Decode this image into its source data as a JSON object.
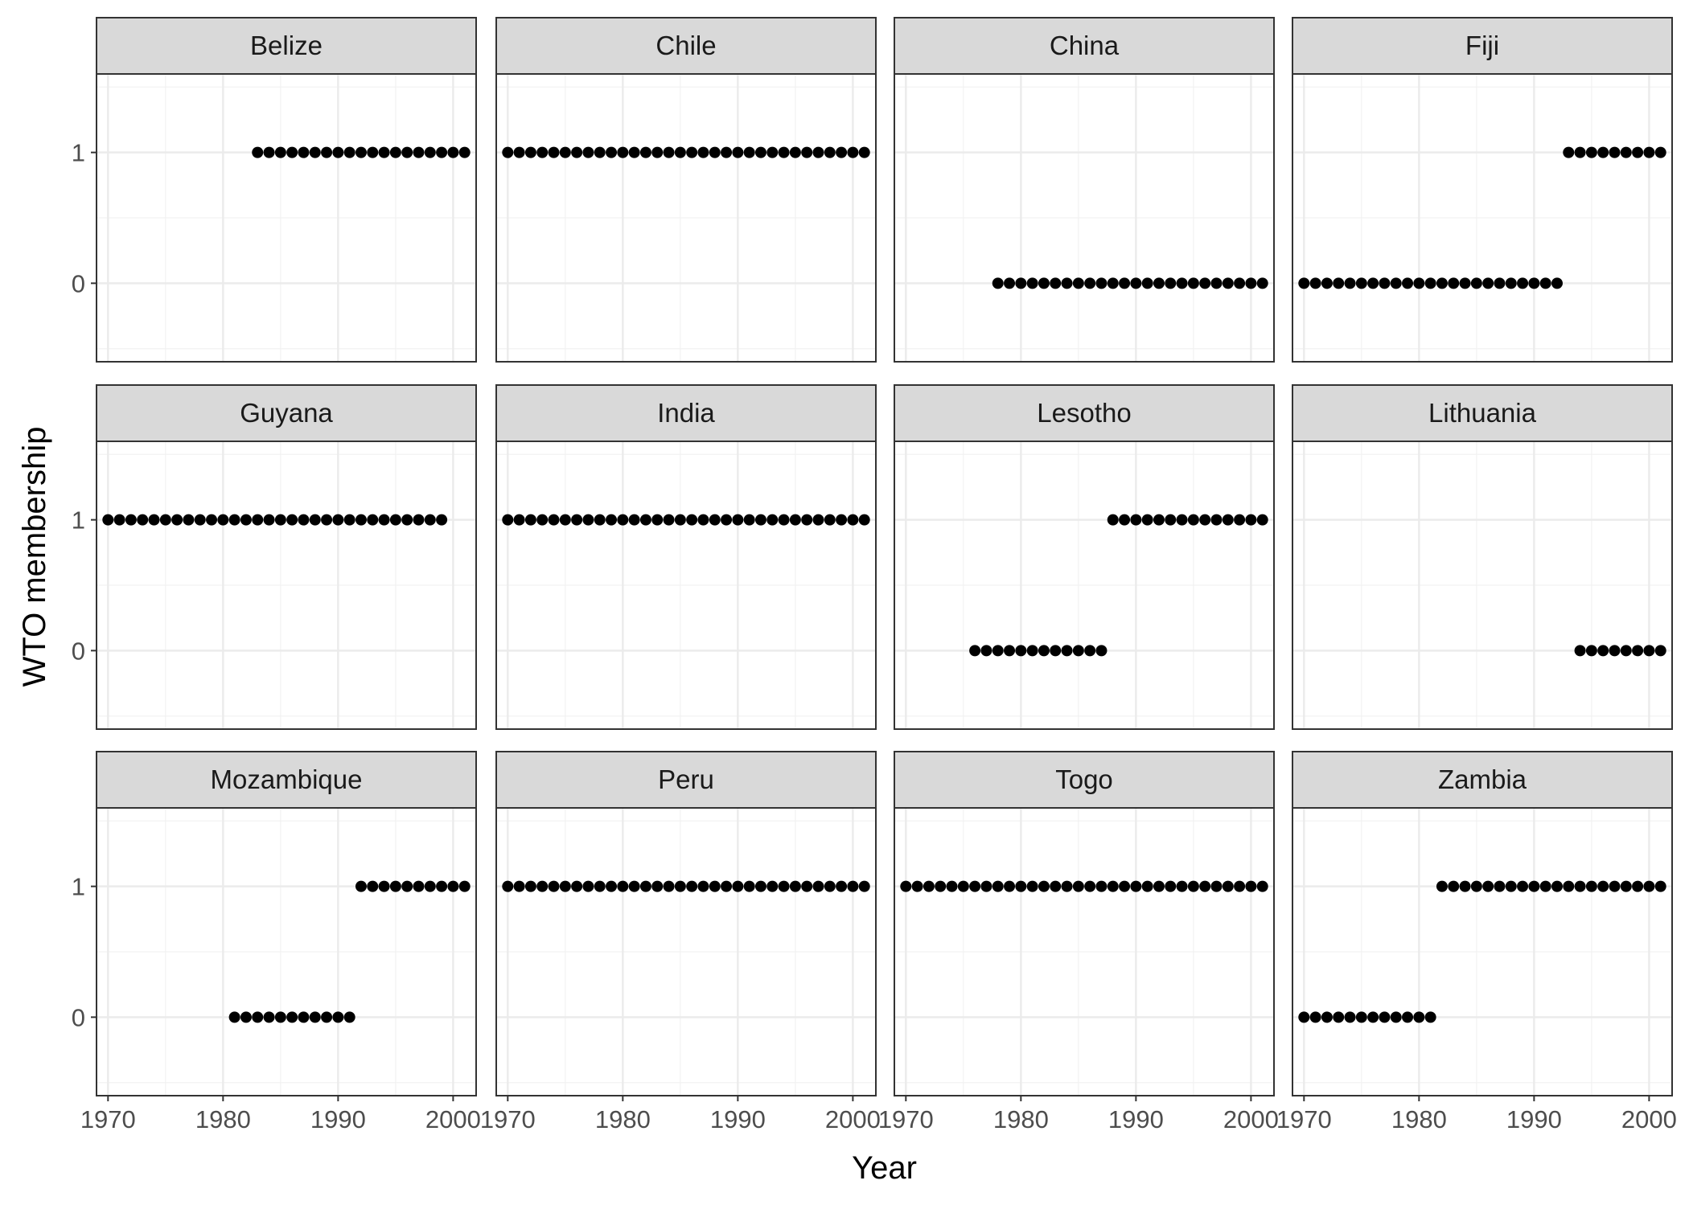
{
  "chart_data": {
    "type": "scatter",
    "layout": "facet-wrap",
    "ncol": 4,
    "xlabel": "Year",
    "ylabel": "WTO membership",
    "xlim": [
      1969,
      2002
    ],
    "ylim": [
      -0.6,
      1.6
    ],
    "x_ticks": [
      1970,
      1980,
      1990,
      2000
    ],
    "x_tick_labels": [
      "1970",
      "1980",
      "1990",
      "2000"
    ],
    "y_ticks": [
      0,
      1
    ],
    "y_tick_labels": [
      "0",
      "1"
    ],
    "grid": true,
    "point_color": "#000000",
    "strip_fill": "#d9d9d9",
    "panels": [
      {
        "name": "Belize",
        "segments": [
          {
            "x_start": 1983,
            "x_end": 2001,
            "y": 1
          }
        ]
      },
      {
        "name": "Chile",
        "segments": [
          {
            "x_start": 1970,
            "x_end": 2001,
            "y": 1
          }
        ]
      },
      {
        "name": "China",
        "segments": [
          {
            "x_start": 1978,
            "x_end": 2001,
            "y": 0
          }
        ]
      },
      {
        "name": "Fiji",
        "segments": [
          {
            "x_start": 1970,
            "x_end": 1992,
            "y": 0
          },
          {
            "x_start": 1993,
            "x_end": 2001,
            "y": 1
          }
        ]
      },
      {
        "name": "Guyana",
        "segments": [
          {
            "x_start": 1970,
            "x_end": 1999,
            "y": 1
          }
        ]
      },
      {
        "name": "India",
        "segments": [
          {
            "x_start": 1970,
            "x_end": 2001,
            "y": 1
          }
        ]
      },
      {
        "name": "Lesotho",
        "segments": [
          {
            "x_start": 1976,
            "x_end": 1987,
            "y": 0
          },
          {
            "x_start": 1988,
            "x_end": 2001,
            "y": 1
          }
        ]
      },
      {
        "name": "Lithuania",
        "segments": [
          {
            "x_start": 1994,
            "x_end": 2001,
            "y": 0
          }
        ]
      },
      {
        "name": "Mozambique",
        "segments": [
          {
            "x_start": 1981,
            "x_end": 1991,
            "y": 0
          },
          {
            "x_start": 1992,
            "x_end": 2001,
            "y": 1
          }
        ]
      },
      {
        "name": "Peru",
        "segments": [
          {
            "x_start": 1970,
            "x_end": 2001,
            "y": 1
          }
        ]
      },
      {
        "name": "Togo",
        "segments": [
          {
            "x_start": 1970,
            "x_end": 2001,
            "y": 1
          }
        ]
      },
      {
        "name": "Zambia",
        "segments": [
          {
            "x_start": 1970,
            "x_end": 1981,
            "y": 0
          },
          {
            "x_start": 1982,
            "x_end": 2001,
            "y": 1
          }
        ]
      }
    ]
  }
}
